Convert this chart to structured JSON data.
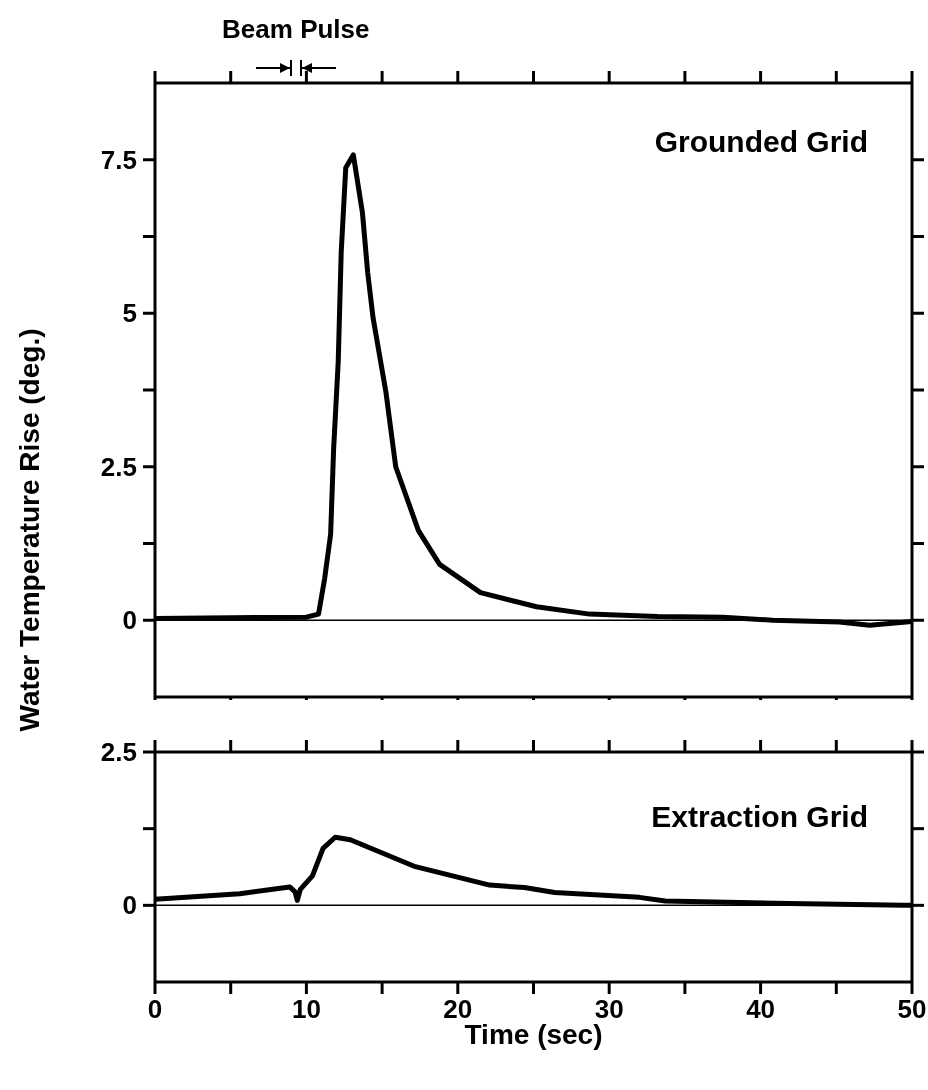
{
  "chart_data": [
    {
      "type": "line",
      "ylabel": "Water Temperature Rise (deg.)",
      "annotations": [
        "Grounded Grid",
        "Beam Pulse"
      ],
      "x": [
        0,
        5,
        10,
        10.8,
        11.2,
        11.6,
        11.8,
        12.1,
        12.3,
        12.6,
        13.1,
        13.7,
        14.05,
        14.4,
        15.25,
        15.9,
        17.4,
        18.8,
        21.5,
        25.2,
        28.7,
        33.2,
        37.5,
        40.8,
        45.2,
        47.2,
        50
      ],
      "series": [
        {
          "color": "#000000",
          "values": [
            0.03,
            0.04,
            0.05,
            0.1,
            0.67,
            1.4,
            2.8,
            4.2,
            6.0,
            7.37,
            7.58,
            6.64,
            5.66,
            4.93,
            3.72,
            2.5,
            1.46,
            0.91,
            0.45,
            0.22,
            0.1,
            0.06,
            0.05,
            0.0,
            -0.03,
            -0.08,
            -0.02
          ]
        }
      ],
      "xlim": [
        0,
        50
      ],
      "xticks": [
        0,
        {
          "value": 5,
          "label": null
        },
        10,
        {
          "value": 15,
          "label": null
        },
        20,
        {
          "value": 25,
          "label": null
        },
        30,
        {
          "value": 35,
          "label": null
        },
        40,
        {
          "value": 45,
          "label": null
        },
        50
      ],
      "ylim": [
        -1.25,
        8.75
      ],
      "yticks": [
        0,
        {
          "value": 1.25,
          "label": null
        },
        2.5,
        {
          "value": 3.75,
          "label": null
        },
        5,
        {
          "value": 6.25,
          "label": null
        },
        7.5
      ],
      "ref_lines": [
        {
          "axis": "y",
          "value": 0,
          "color": "#000000"
        }
      ],
      "tick_labels": "y",
      "grid": false,
      "legend": false,
      "marker": "none",
      "line_style": "solid"
    },
    {
      "type": "line",
      "xlabel": "Time (sec)",
      "annotations": [
        "Extraction Grid"
      ],
      "x": [
        0,
        5.6,
        8.9,
        9.25,
        9.4,
        9.6,
        10.4,
        11.1,
        11.9,
        12.9,
        17.2,
        22.1,
        24.4,
        26.4,
        32,
        33.7,
        41.9,
        49.5,
        50
      ],
      "series": [
        {
          "color": "#000000",
          "values": [
            0.1,
            0.19,
            0.3,
            0.22,
            0.08,
            0.26,
            0.48,
            0.93,
            1.11,
            1.07,
            0.63,
            0.33,
            0.29,
            0.21,
            0.13,
            0.07,
            0.03,
            0.0,
            0.0
          ]
        }
      ],
      "xlim": [
        0,
        50
      ],
      "xticks": [
        0,
        {
          "value": 5,
          "label": null
        },
        10,
        {
          "value": 15,
          "label": null
        },
        20,
        {
          "value": 25,
          "label": null
        },
        30,
        {
          "value": 35,
          "label": null
        },
        40,
        {
          "value": 45,
          "label": null
        },
        50
      ],
      "ylim": [
        -1.25,
        2.5
      ],
      "yticks": [
        0,
        {
          "value": 1.25,
          "label": null
        },
        2.5
      ],
      "ref_lines": [
        {
          "axis": "y",
          "value": 0,
          "color": "#000000"
        }
      ],
      "grid": false,
      "legend": false,
      "marker": "none",
      "line_style": "solid"
    }
  ]
}
